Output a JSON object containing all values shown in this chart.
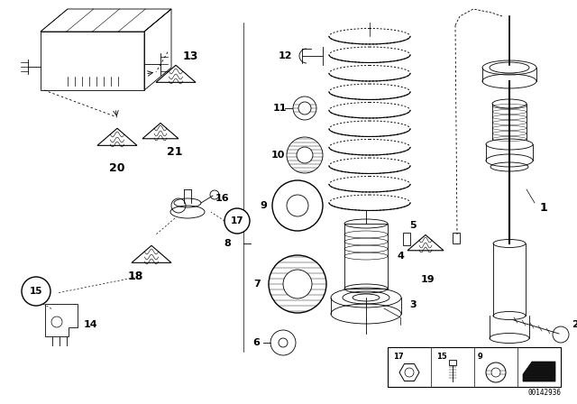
{
  "bg_color": "#ffffff",
  "line_color": "#000000",
  "fig_width": 6.4,
  "fig_height": 4.48,
  "dpi": 100,
  "image_id": "00142936"
}
